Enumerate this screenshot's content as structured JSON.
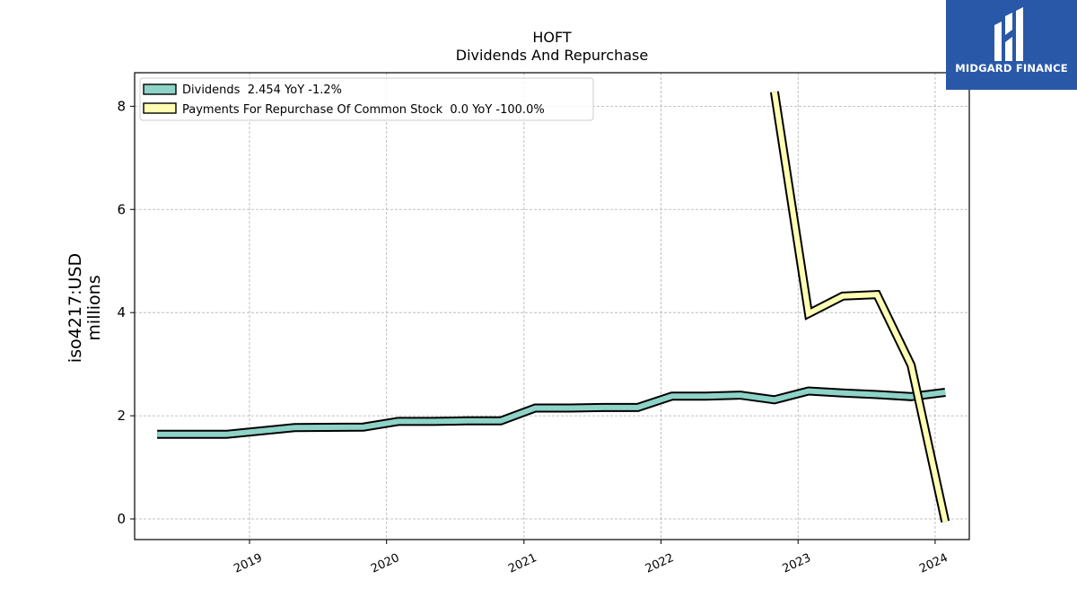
{
  "chart_data": {
    "type": "line",
    "title": "HOFT",
    "subtitle": "Dividends And Repurchase",
    "ylabel": "iso4217:USD",
    "ylabel2": "millions",
    "xlabel": "",
    "xlim": [
      "2018-03-01",
      "2024-04-01"
    ],
    "ylim": [
      -0.4,
      8.65
    ],
    "x_ticks": [
      "2019",
      "2020",
      "2021",
      "2022",
      "2023",
      "2024"
    ],
    "y_ticks": [
      0,
      2,
      4,
      6,
      8
    ],
    "grid": true,
    "legend_position": "top-left",
    "series": [
      {
        "name": "Dividends",
        "legend_label": "Dividends  2.454 YoY -1.2%",
        "color": "#8dd3c7",
        "points": [
          [
            "2018-04-30",
            1.64
          ],
          [
            "2018-10-31",
            1.64
          ],
          [
            "2019-05-01",
            1.77
          ],
          [
            "2019-10-31",
            1.78
          ],
          [
            "2020-02-01",
            1.89
          ],
          [
            "2020-05-01",
            1.89
          ],
          [
            "2020-07-31",
            1.9
          ],
          [
            "2020-10-31",
            1.9
          ],
          [
            "2021-01-31",
            2.15
          ],
          [
            "2021-05-01",
            2.15
          ],
          [
            "2021-07-31",
            2.16
          ],
          [
            "2021-10-31",
            2.16
          ],
          [
            "2022-01-30",
            2.38
          ],
          [
            "2022-04-30",
            2.38
          ],
          [
            "2022-07-31",
            2.4
          ],
          [
            "2022-10-30",
            2.31
          ],
          [
            "2023-01-29",
            2.48
          ],
          [
            "2023-04-30",
            2.44
          ],
          [
            "2023-07-30",
            2.41
          ],
          [
            "2023-10-29",
            2.37
          ],
          [
            "2024-01-28",
            2.454
          ]
        ]
      },
      {
        "name": "Payments For Repurchase Of Common Stock",
        "legend_label": "Payments For Repurchase Of Common Stock  0.0 YoY -100.0%",
        "color": "#ffffb3",
        "points": [
          [
            "2022-10-30",
            8.28
          ],
          [
            "2023-01-29",
            3.98
          ],
          [
            "2023-04-30",
            4.32
          ],
          [
            "2023-07-30",
            4.35
          ],
          [
            "2023-10-29",
            2.98
          ],
          [
            "2024-01-28",
            -0.05
          ]
        ]
      }
    ]
  },
  "brand": {
    "name": "MIDGARD FINANCE",
    "icon": "midgard-logo-icon",
    "background": "#2a58a8"
  }
}
